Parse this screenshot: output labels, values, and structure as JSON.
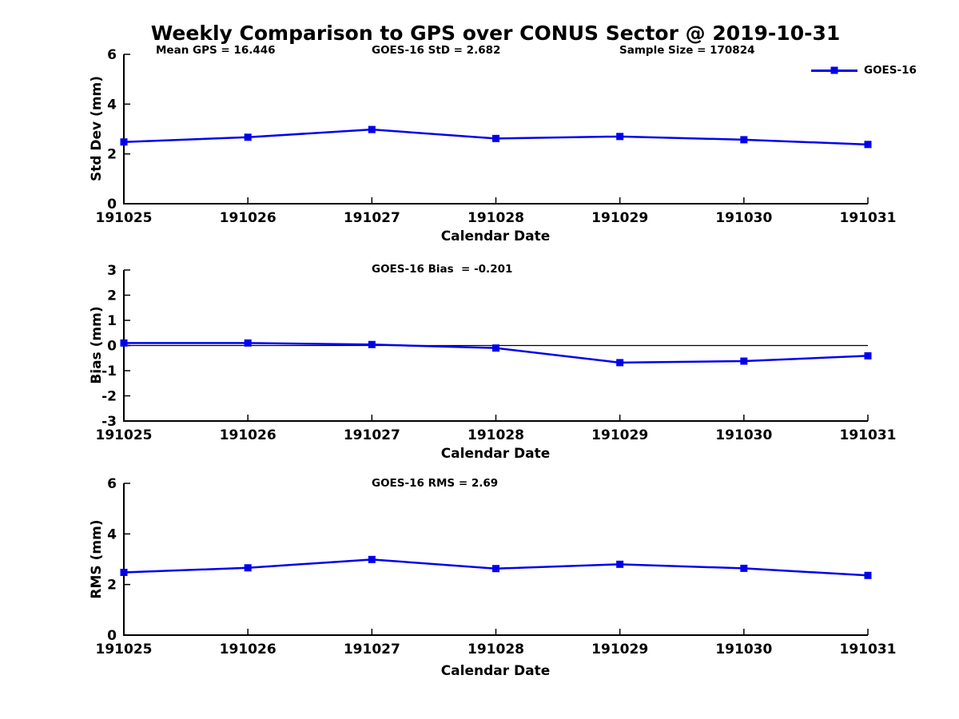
{
  "title": "Weekly Comparison to GPS over CONUS Sector @ 2019-10-31",
  "colors": {
    "line": "#0000EE",
    "axis": "#000000",
    "text": "#000000",
    "background": "#FFFFFF"
  },
  "legend": {
    "label": "GOES-16"
  },
  "header_stats": {
    "mean_gps": "Mean GPS = 16.446",
    "goes_std": "GOES-16 StD = 2.682",
    "sample_size": "Sample Size = 170824"
  },
  "chart_data": [
    {
      "type": "line",
      "ylabel": "Std Dev (mm)",
      "xlabel": "Calendar Date",
      "categories": [
        "191025",
        "191026",
        "191027",
        "191028",
        "191029",
        "191030",
        "191031"
      ],
      "series": [
        {
          "name": "GOES-16",
          "color": "#0000EE",
          "marker": "square",
          "values": [
            2.48,
            2.67,
            2.98,
            2.62,
            2.7,
            2.57,
            2.38
          ]
        }
      ],
      "ylim": [
        0,
        6
      ],
      "yticks": [
        0,
        2,
        4,
        6
      ],
      "grid": false,
      "zero_line": false,
      "legend_position": "top-right",
      "annotations": [
        "Mean GPS = 16.446",
        "GOES-16 StD = 2.682",
        "Sample Size = 170824"
      ]
    },
    {
      "type": "line",
      "ylabel": "Bias (mm)",
      "xlabel": "Calendar Date",
      "categories": [
        "191025",
        "191026",
        "191027",
        "191028",
        "191029",
        "191030",
        "191031"
      ],
      "series": [
        {
          "name": "GOES-16",
          "color": "#0000EE",
          "marker": "square",
          "values": [
            0.1,
            0.1,
            0.04,
            -0.1,
            -0.68,
            -0.62,
            -0.41
          ]
        }
      ],
      "ylim": [
        -3,
        3
      ],
      "yticks": [
        -3,
        -2,
        -1,
        0,
        1,
        2,
        3
      ],
      "grid": false,
      "zero_line": true,
      "legend_position": "none",
      "annotations": [
        "GOES-16 Bias  = -0.201"
      ]
    },
    {
      "type": "line",
      "ylabel": "RMS (mm)",
      "xlabel": "Calendar Date",
      "categories": [
        "191025",
        "191026",
        "191027",
        "191028",
        "191029",
        "191030",
        "191031"
      ],
      "series": [
        {
          "name": "GOES-16",
          "color": "#0000EE",
          "marker": "square",
          "values": [
            2.48,
            2.66,
            2.99,
            2.63,
            2.8,
            2.64,
            2.36
          ]
        }
      ],
      "ylim": [
        0,
        6
      ],
      "yticks": [
        0,
        2,
        4,
        6
      ],
      "grid": false,
      "zero_line": false,
      "legend_position": "none",
      "annotations": [
        "GOES-16 RMS = 2.69"
      ]
    }
  ]
}
